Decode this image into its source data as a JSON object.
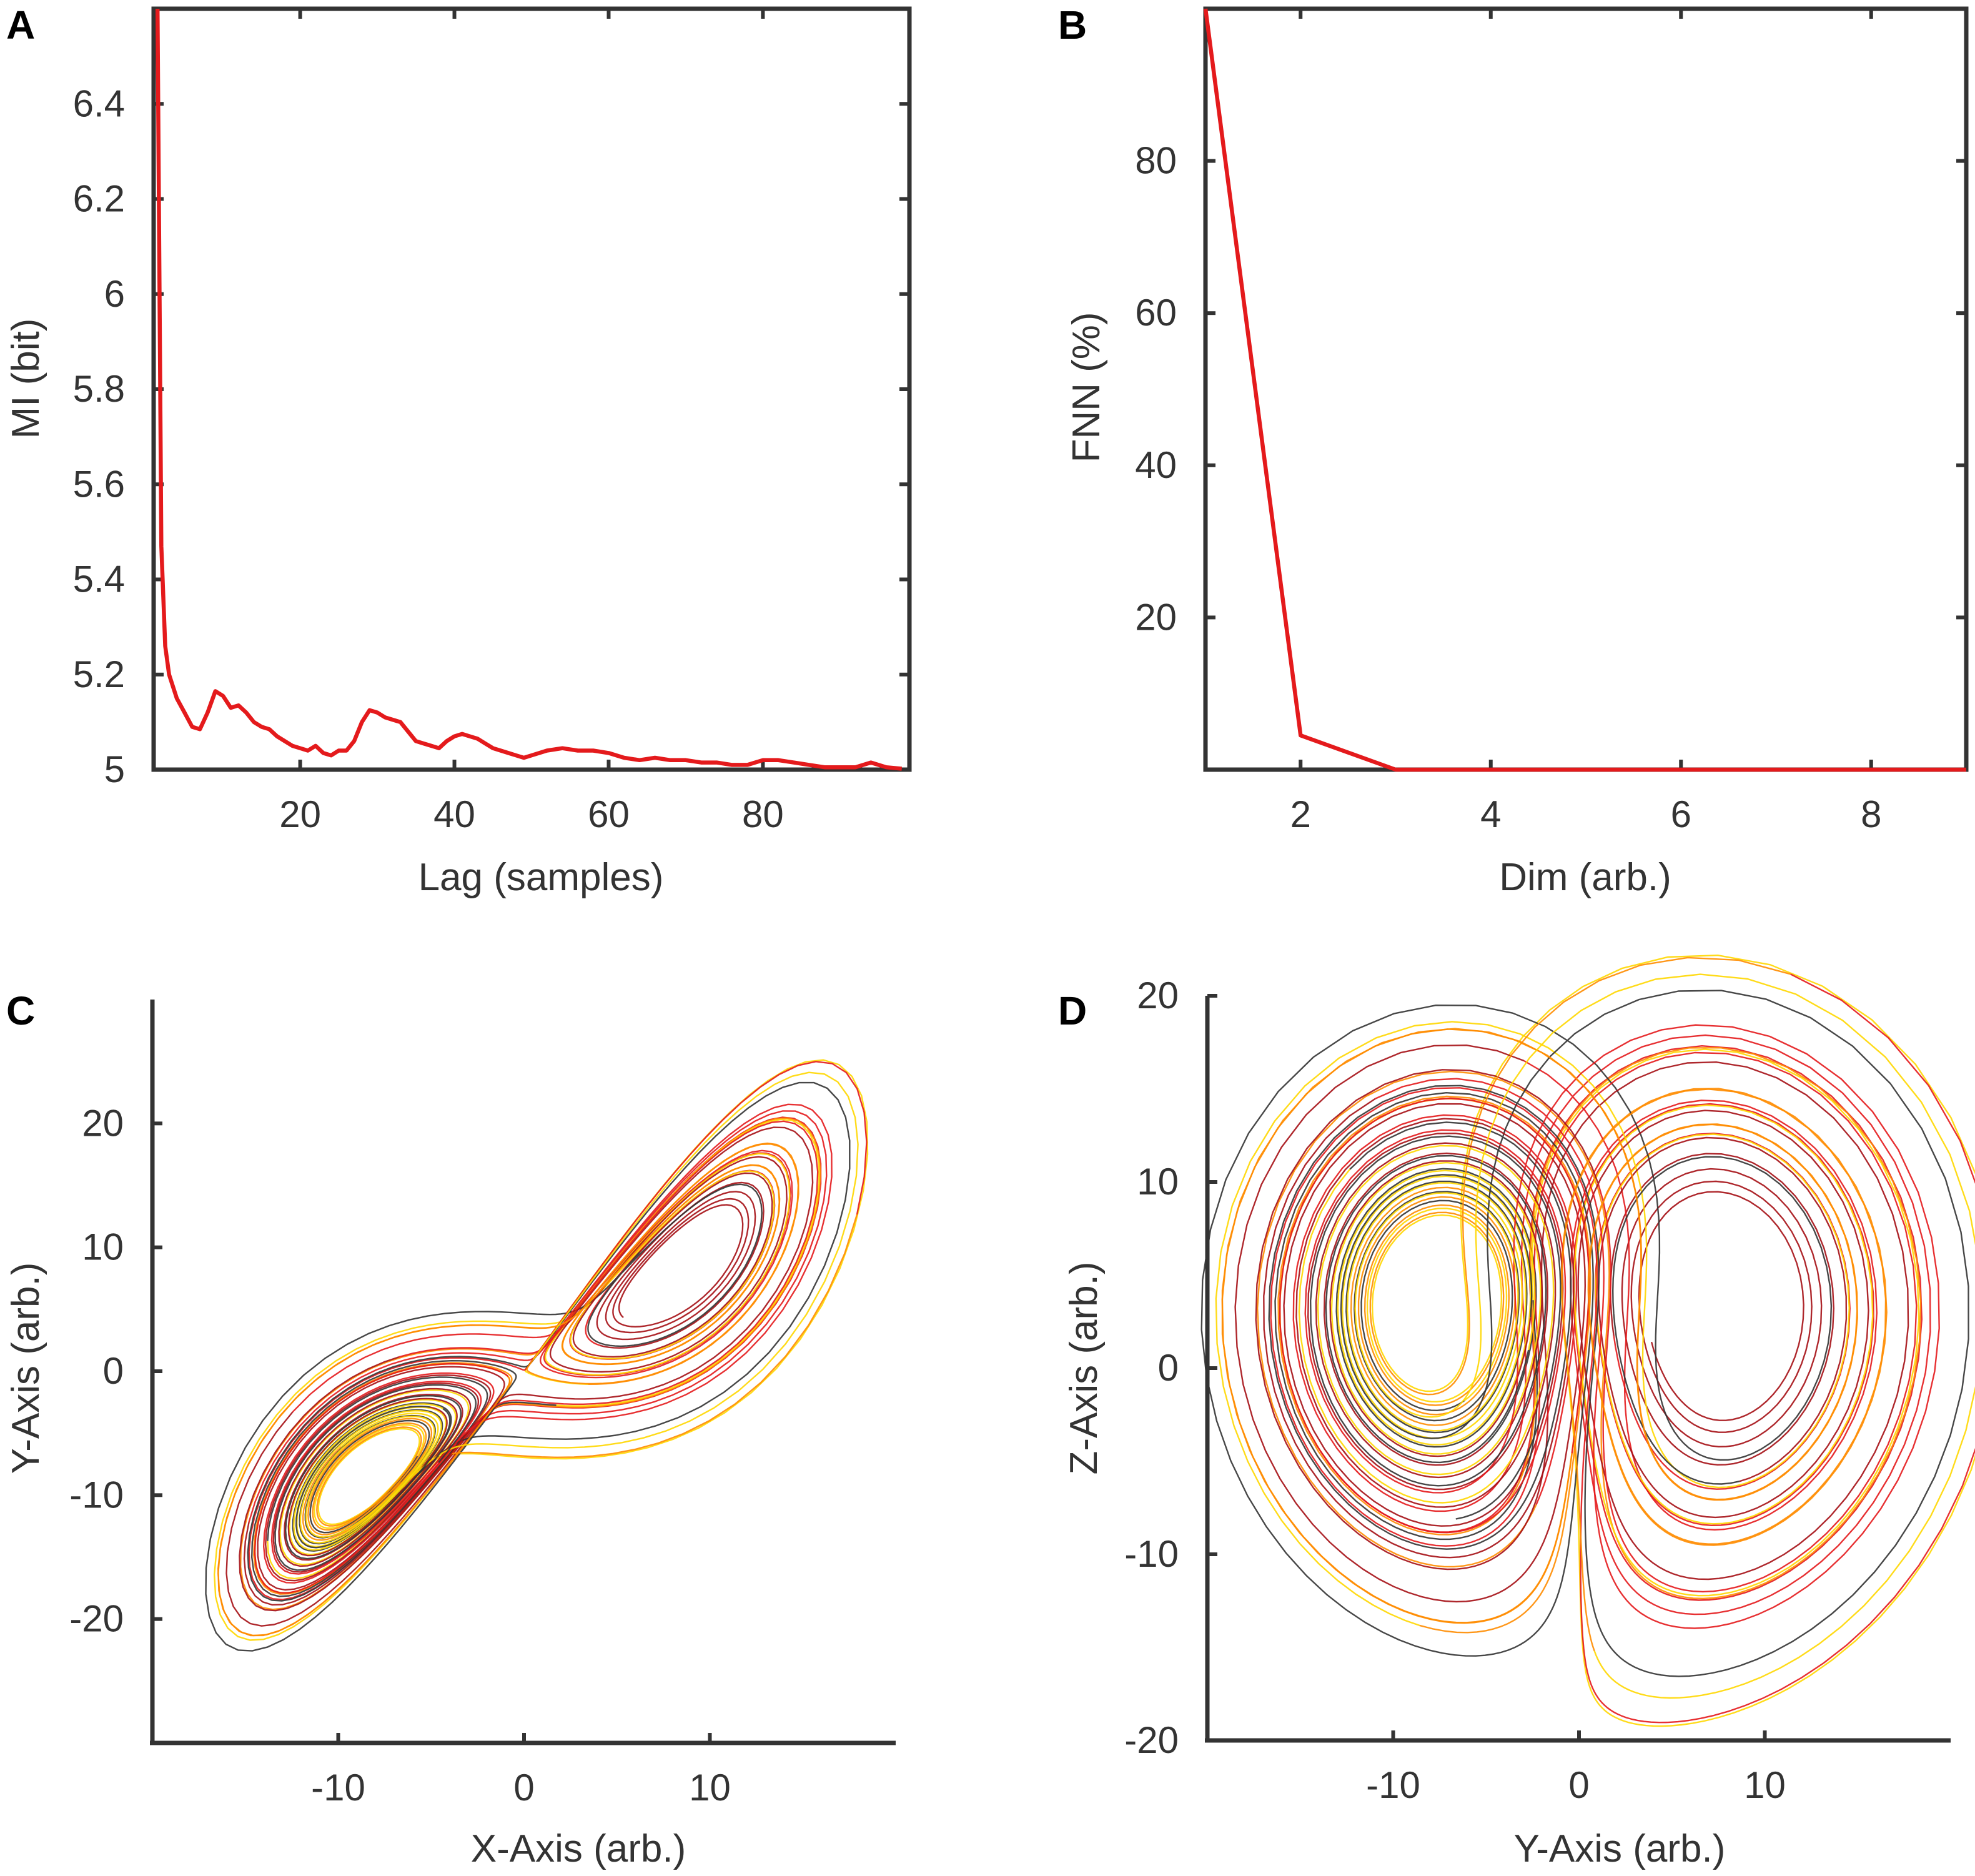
{
  "chart_data": [
    {
      "panel": "A",
      "type": "line",
      "title": "",
      "xlabel": "Lag (samples)",
      "ylabel": "MI (bit)",
      "xlim": [
        1,
        99
      ],
      "ylim": [
        5,
        6.6
      ],
      "xticks": [
        20,
        40,
        60,
        80
      ],
      "yticks": [
        5,
        5.2,
        5.4,
        5.6,
        5.8,
        6,
        6.2,
        6.4
      ],
      "ytick_labels": [
        "5",
        "5.2",
        "5.4",
        "5.6",
        "5.8",
        "6",
        "6.2",
        "6.4"
      ],
      "grid": false,
      "color": "#e41a1c",
      "x": [
        1.5,
        2,
        2.5,
        3,
        4,
        5,
        6,
        7,
        8,
        9,
        10,
        11,
        12,
        13,
        14,
        15,
        16,
        17,
        18,
        19,
        20,
        21,
        22,
        23,
        24,
        25,
        26,
        27,
        28,
        29,
        30,
        31,
        32,
        33,
        34,
        35,
        36,
        37,
        38,
        39,
        40,
        41,
        42,
        43,
        44,
        45,
        46,
        47,
        48,
        49,
        50,
        52,
        54,
        56,
        58,
        60,
        62,
        64,
        66,
        68,
        70,
        72,
        74,
        76,
        78,
        80,
        82,
        84,
        86,
        88,
        90,
        92,
        94,
        96,
        98
      ],
      "y": [
        6.6,
        5.47,
        5.26,
        5.2,
        5.15,
        5.12,
        5.09,
        5.085,
        5.12,
        5.165,
        5.155,
        5.13,
        5.135,
        5.12,
        5.1,
        5.09,
        5.085,
        5.07,
        5.06,
        5.05,
        5.045,
        5.04,
        5.05,
        5.035,
        5.03,
        5.04,
        5.04,
        5.06,
        5.1,
        5.125,
        5.12,
        5.11,
        5.105,
        5.1,
        5.08,
        5.06,
        5.055,
        5.05,
        5.045,
        5.06,
        5.07,
        5.075,
        5.07,
        5.065,
        5.055,
        5.045,
        5.04,
        5.035,
        5.03,
        5.025,
        5.03,
        5.04,
        5.045,
        5.04,
        5.04,
        5.035,
        5.025,
        5.02,
        5.025,
        5.02,
        5.02,
        5.015,
        5.015,
        5.01,
        5.01,
        5.02,
        5.02,
        5.015,
        5.01,
        5.005,
        5.005,
        5.005,
        5.015,
        5.005,
        5.002
      ]
    },
    {
      "panel": "B",
      "type": "line",
      "title": "",
      "xlabel": "Dim (arb.)",
      "ylabel": "FNN (%)",
      "xlim": [
        1,
        9
      ],
      "ylim": [
        0,
        100
      ],
      "xticks": [
        2,
        4,
        6,
        8
      ],
      "yticks": [
        20,
        40,
        60,
        80
      ],
      "grid": false,
      "color": "#e41a1c",
      "x": [
        1,
        2,
        3,
        4,
        5,
        6,
        7,
        8,
        9
      ],
      "y": [
        100,
        4.5,
        0,
        0,
        0,
        0,
        0,
        0,
        0
      ]
    },
    {
      "panel": "C",
      "type": "line",
      "plot": "phase-space trajectory (Lorenz attractor projection)",
      "title": "",
      "xlabel": "X-Axis (arb.)",
      "ylabel": "Y-Axis (arb.)",
      "xlim": [
        -20,
        20
      ],
      "ylim": [
        -30,
        30
      ],
      "xticks": [
        -10,
        0,
        10
      ],
      "yticks": [
        -20,
        -10,
        0,
        10,
        20
      ],
      "grid": false,
      "line_colors": [
        "#a50f15",
        "#e41a1c",
        "#ff8c00",
        "#ffd700",
        "#333333"
      ]
    },
    {
      "panel": "D",
      "type": "line",
      "plot": "phase-space trajectory (Lorenz attractor projection)",
      "title": "",
      "xlabel": "Y-Axis (arb.)",
      "ylabel": "Z-Axis (arb.)",
      "xlim": [
        -20,
        20
      ],
      "ylim": [
        -20,
        20
      ],
      "xticks": [
        -10,
        0,
        10
      ],
      "yticks": [
        -20,
        -10,
        0,
        10,
        20
      ],
      "grid": false,
      "line_colors": [
        "#a50f15",
        "#e41a1c",
        "#ff8c00",
        "#ffd700",
        "#333333"
      ]
    }
  ]
}
